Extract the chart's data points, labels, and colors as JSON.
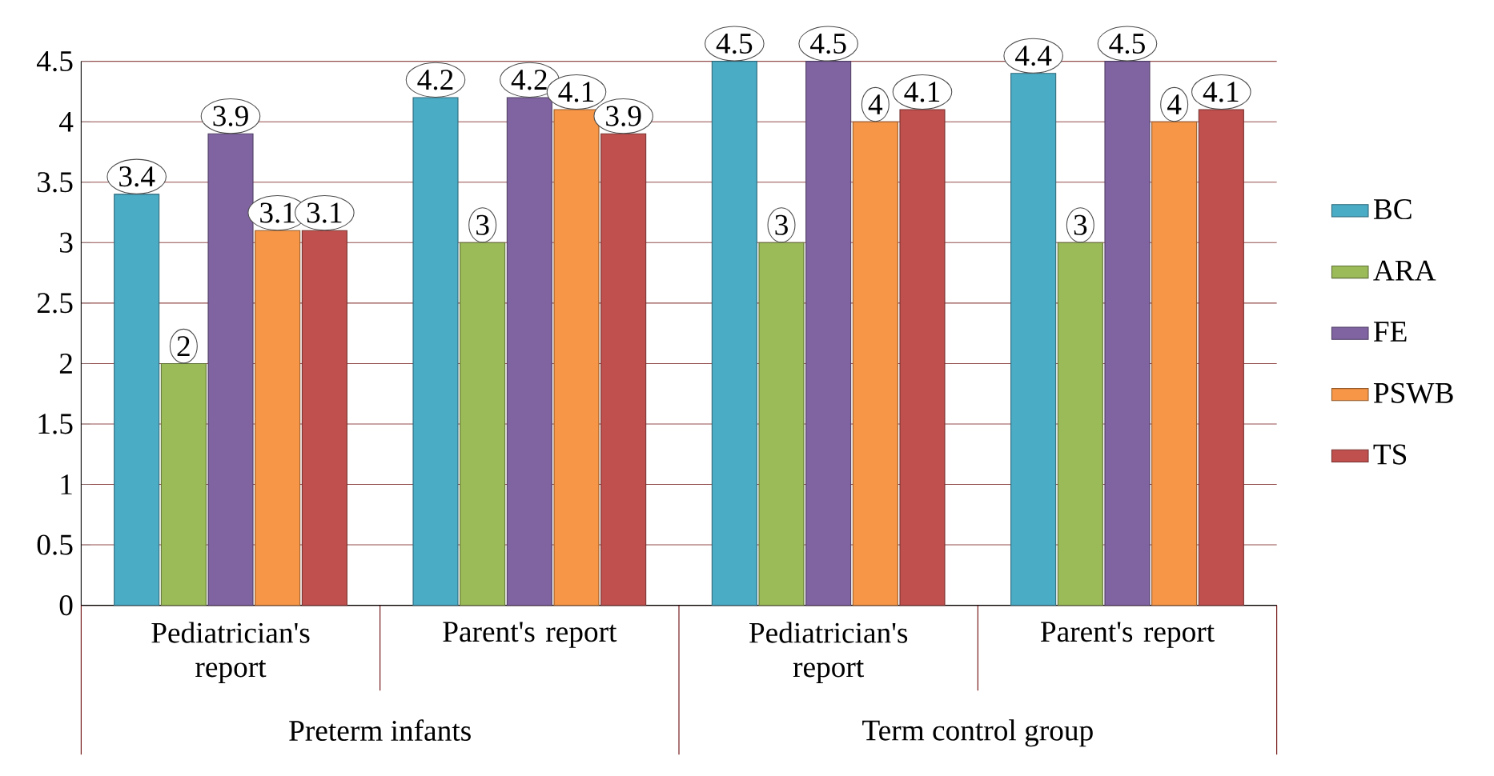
{
  "chart_data": {
    "type": "bar",
    "categories": [
      "Pediatrician's report",
      "Parent's report",
      "Pediatrician's report",
      "Parent's report"
    ],
    "series": [
      {
        "name": "BC",
        "color": "#4bacc6",
        "values": [
          3.4,
          4.2,
          4.5,
          4.4
        ]
      },
      {
        "name": "ARA",
        "color": "#9bbb59",
        "values": [
          2,
          3,
          3,
          3
        ]
      },
      {
        "name": "FE",
        "color": "#8064a2",
        "values": [
          3.9,
          4.2,
          4.5,
          4.5
        ]
      },
      {
        "name": "PSWB",
        "color": "#f79646",
        "values": [
          3.1,
          4.1,
          4,
          4
        ]
      },
      {
        "name": "TS",
        "color": "#c0504d",
        "values": [
          3.1,
          3.9,
          4.1,
          4.1
        ]
      }
    ],
    "annotations": [
      "Preterm infants",
      "Term control group"
    ],
    "ylim": [
      0,
      4.5
    ],
    "yticks": [
      0,
      0.5,
      1,
      1.5,
      2,
      2.5,
      3,
      3.5,
      4,
      4.5
    ],
    "grid": "y",
    "legend": "right",
    "data_labels": true
  }
}
